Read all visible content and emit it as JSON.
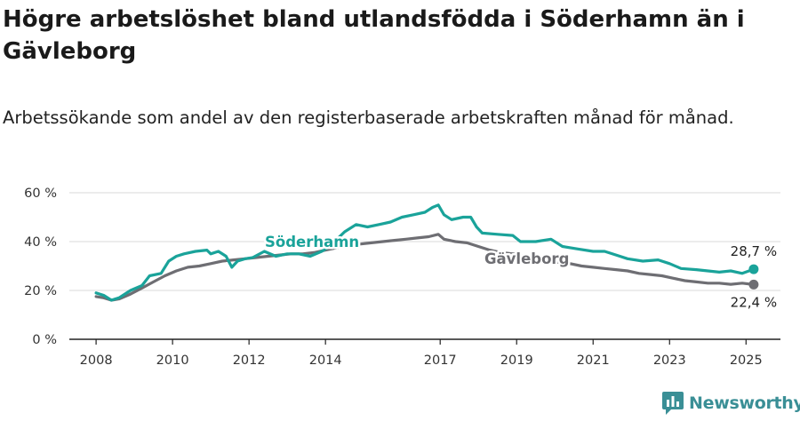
{
  "title": "Högre arbetslöshet bland utlandsfödda i Söderhamn än i Gävleborg",
  "subtitle": "Arbetssökande som andel av den registerbaserade arbetskraften månad för månad.",
  "brand": {
    "name": "Newsworthy",
    "color": "#3a8f96"
  },
  "chart_data": {
    "type": "line",
    "ylim": [
      0,
      60
    ],
    "yticks": [
      0,
      20,
      40,
      60
    ],
    "ytick_labels": [
      "0 %",
      "20 %",
      "40 %",
      "60 %"
    ],
    "xlim": [
      2007.3,
      2025.9
    ],
    "xticks": [
      2008,
      2010,
      2012,
      2014,
      2017,
      2019,
      2021,
      2023,
      2025
    ],
    "xtick_labels": [
      "2008",
      "2010",
      "2012",
      "2014",
      "2017",
      "2019",
      "2021",
      "2023",
      "2025"
    ],
    "grid": "horizontal",
    "series": [
      {
        "name": "Söderhamn",
        "color": "#1aa39a",
        "end_label": "28,7 %",
        "points": [
          [
            2008.0,
            19
          ],
          [
            2008.2,
            18
          ],
          [
            2008.4,
            16
          ],
          [
            2008.6,
            17
          ],
          [
            2008.9,
            20
          ],
          [
            2009.2,
            22
          ],
          [
            2009.4,
            26
          ],
          [
            2009.7,
            27
          ],
          [
            2009.9,
            32
          ],
          [
            2010.1,
            34
          ],
          [
            2010.3,
            35
          ],
          [
            2010.6,
            36
          ],
          [
            2010.9,
            36.5
          ],
          [
            2011.0,
            35
          ],
          [
            2011.2,
            36
          ],
          [
            2011.4,
            34
          ],
          [
            2011.55,
            29.5
          ],
          [
            2011.7,
            32
          ],
          [
            2011.9,
            33
          ],
          [
            2012.1,
            33.5
          ],
          [
            2012.4,
            36
          ],
          [
            2012.7,
            34
          ],
          [
            2013.0,
            35
          ],
          [
            2013.3,
            35
          ],
          [
            2013.6,
            34
          ],
          [
            2013.9,
            36
          ],
          [
            2014.1,
            38
          ],
          [
            2014.3,
            41
          ],
          [
            2014.5,
            44
          ],
          [
            2014.8,
            47
          ],
          [
            2015.1,
            46
          ],
          [
            2015.4,
            47
          ],
          [
            2015.7,
            48
          ],
          [
            2016.0,
            50
          ],
          [
            2016.3,
            51
          ],
          [
            2016.6,
            52
          ],
          [
            2016.8,
            54
          ],
          [
            2016.95,
            55
          ],
          [
            2017.1,
            51
          ],
          [
            2017.3,
            49
          ],
          [
            2017.6,
            50
          ],
          [
            2017.8,
            50
          ],
          [
            2017.95,
            46
          ],
          [
            2018.1,
            43.5
          ],
          [
            2018.5,
            43
          ],
          [
            2018.9,
            42.5
          ],
          [
            2019.1,
            40
          ],
          [
            2019.5,
            40
          ],
          [
            2019.9,
            41
          ],
          [
            2020.2,
            38
          ],
          [
            2020.6,
            37
          ],
          [
            2021.0,
            36
          ],
          [
            2021.3,
            36
          ],
          [
            2021.6,
            34.5
          ],
          [
            2021.9,
            33
          ],
          [
            2022.3,
            32
          ],
          [
            2022.7,
            32.5
          ],
          [
            2023.0,
            31
          ],
          [
            2023.3,
            29
          ],
          [
            2023.7,
            28.5
          ],
          [
            2024.0,
            28
          ],
          [
            2024.3,
            27.5
          ],
          [
            2024.6,
            28
          ],
          [
            2024.9,
            27
          ],
          [
            2025.2,
            28.7
          ]
        ]
      },
      {
        "name": "Gävleborg",
        "color": "#6e6e73",
        "end_label": "22,4 %",
        "points": [
          [
            2008.0,
            17.5
          ],
          [
            2008.2,
            17
          ],
          [
            2008.4,
            16
          ],
          [
            2008.6,
            16.5
          ],
          [
            2008.9,
            18.5
          ],
          [
            2009.2,
            21
          ],
          [
            2009.5,
            23.5
          ],
          [
            2009.8,
            26
          ],
          [
            2010.1,
            28
          ],
          [
            2010.4,
            29.5
          ],
          [
            2010.7,
            30
          ],
          [
            2011.0,
            31
          ],
          [
            2011.3,
            32
          ],
          [
            2011.6,
            32.5
          ],
          [
            2011.9,
            33
          ],
          [
            2012.2,
            33.5
          ],
          [
            2012.5,
            34
          ],
          [
            2012.8,
            34.5
          ],
          [
            2013.1,
            35
          ],
          [
            2013.4,
            35
          ],
          [
            2013.7,
            35.5
          ],
          [
            2014.0,
            36.5
          ],
          [
            2014.3,
            37.5
          ],
          [
            2014.6,
            38.5
          ],
          [
            2014.9,
            39
          ],
          [
            2015.2,
            39.5
          ],
          [
            2015.5,
            40
          ],
          [
            2015.8,
            40.5
          ],
          [
            2016.1,
            41
          ],
          [
            2016.4,
            41.5
          ],
          [
            2016.7,
            42
          ],
          [
            2016.95,
            43
          ],
          [
            2017.1,
            41
          ],
          [
            2017.4,
            40
          ],
          [
            2017.7,
            39.5
          ],
          [
            2018.0,
            38
          ],
          [
            2018.3,
            36.5
          ],
          [
            2018.6,
            35.5
          ],
          [
            2018.9,
            35
          ],
          [
            2019.2,
            34
          ],
          [
            2019.5,
            33
          ],
          [
            2019.8,
            32.5
          ],
          [
            2020.1,
            31.5
          ],
          [
            2020.4,
            31
          ],
          [
            2020.7,
            30
          ],
          [
            2021.0,
            29.5
          ],
          [
            2021.3,
            29
          ],
          [
            2021.6,
            28.5
          ],
          [
            2021.9,
            28
          ],
          [
            2022.2,
            27
          ],
          [
            2022.5,
            26.5
          ],
          [
            2022.8,
            26
          ],
          [
            2023.1,
            25
          ],
          [
            2023.4,
            24
          ],
          [
            2023.7,
            23.5
          ],
          [
            2024.0,
            23
          ],
          [
            2024.3,
            23
          ],
          [
            2024.6,
            22.5
          ],
          [
            2024.9,
            23
          ],
          [
            2025.2,
            22.4
          ]
        ]
      }
    ]
  }
}
